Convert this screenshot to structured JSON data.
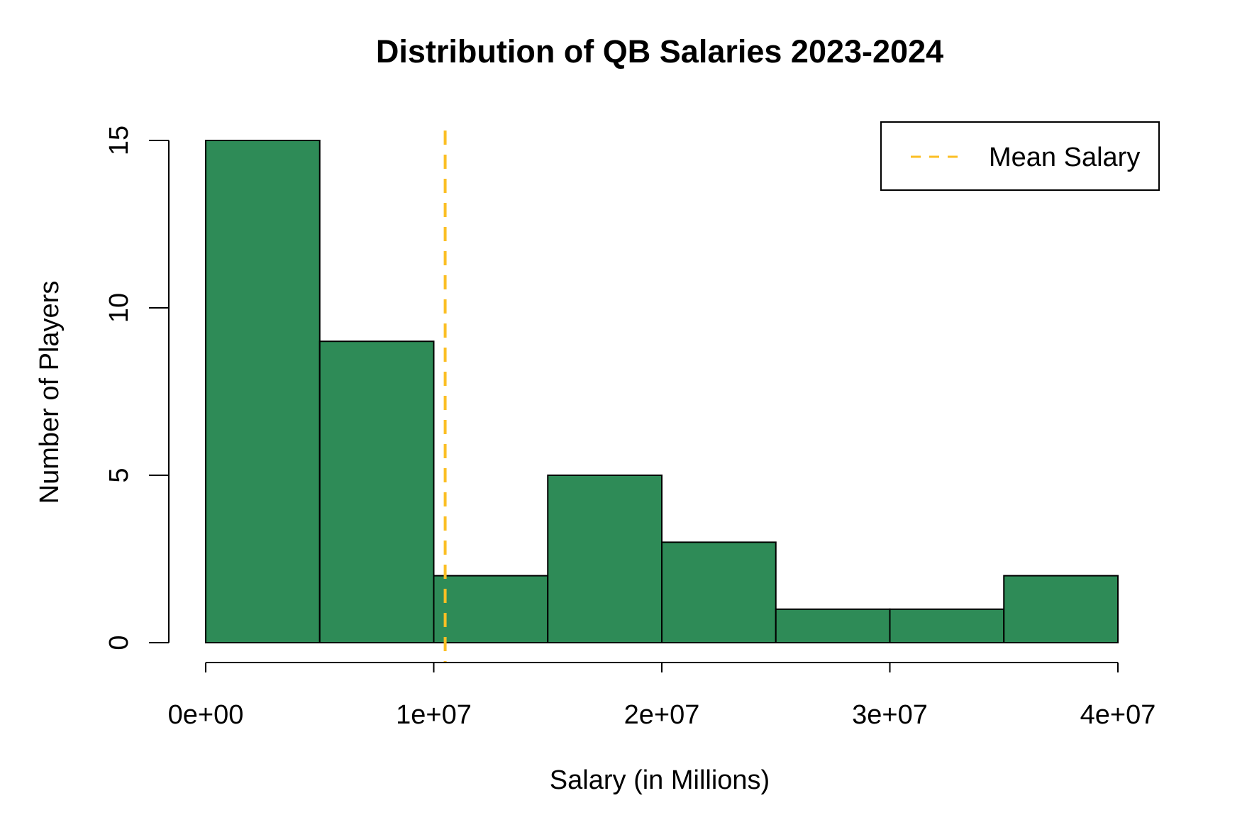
{
  "colors": {
    "bar_fill": "#2e8b57",
    "bar_stroke": "#000000",
    "mean_line": "#fbbf24",
    "background": "#ffffff"
  },
  "chart_data": {
    "type": "bar",
    "subtype": "histogram",
    "title": "Distribution of QB Salaries 2023-2024",
    "xlabel": "Salary (in Millions)",
    "ylabel": "Number of Players",
    "bins": [
      {
        "start": 0,
        "end": 5000000,
        "count": 15
      },
      {
        "start": 5000000,
        "end": 10000000,
        "count": 9
      },
      {
        "start": 10000000,
        "end": 15000000,
        "count": 2
      },
      {
        "start": 15000000,
        "end": 20000000,
        "count": 5
      },
      {
        "start": 20000000,
        "end": 25000000,
        "count": 3
      },
      {
        "start": 25000000,
        "end": 30000000,
        "count": 1
      },
      {
        "start": 30000000,
        "end": 35000000,
        "count": 1
      },
      {
        "start": 35000000,
        "end": 40000000,
        "count": 2
      }
    ],
    "xlim": [
      0,
      40000000
    ],
    "ylim": [
      0,
      15
    ],
    "x_ticks": [
      {
        "value": 0,
        "label": "0e+00"
      },
      {
        "value": 10000000,
        "label": "1e+07"
      },
      {
        "value": 20000000,
        "label": "2e+07"
      },
      {
        "value": 30000000,
        "label": "3e+07"
      },
      {
        "value": 40000000,
        "label": "4e+07"
      }
    ],
    "y_ticks": [
      {
        "value": 0,
        "label": "0"
      },
      {
        "value": 5,
        "label": "5"
      },
      {
        "value": 10,
        "label": "10"
      },
      {
        "value": 15,
        "label": "15"
      }
    ],
    "mean_line": {
      "value": 10500000,
      "style": "dashed"
    },
    "legend": {
      "position": "top-right",
      "entries": [
        {
          "label": "Mean Salary",
          "style": "dashed"
        }
      ]
    },
    "grid": false
  }
}
